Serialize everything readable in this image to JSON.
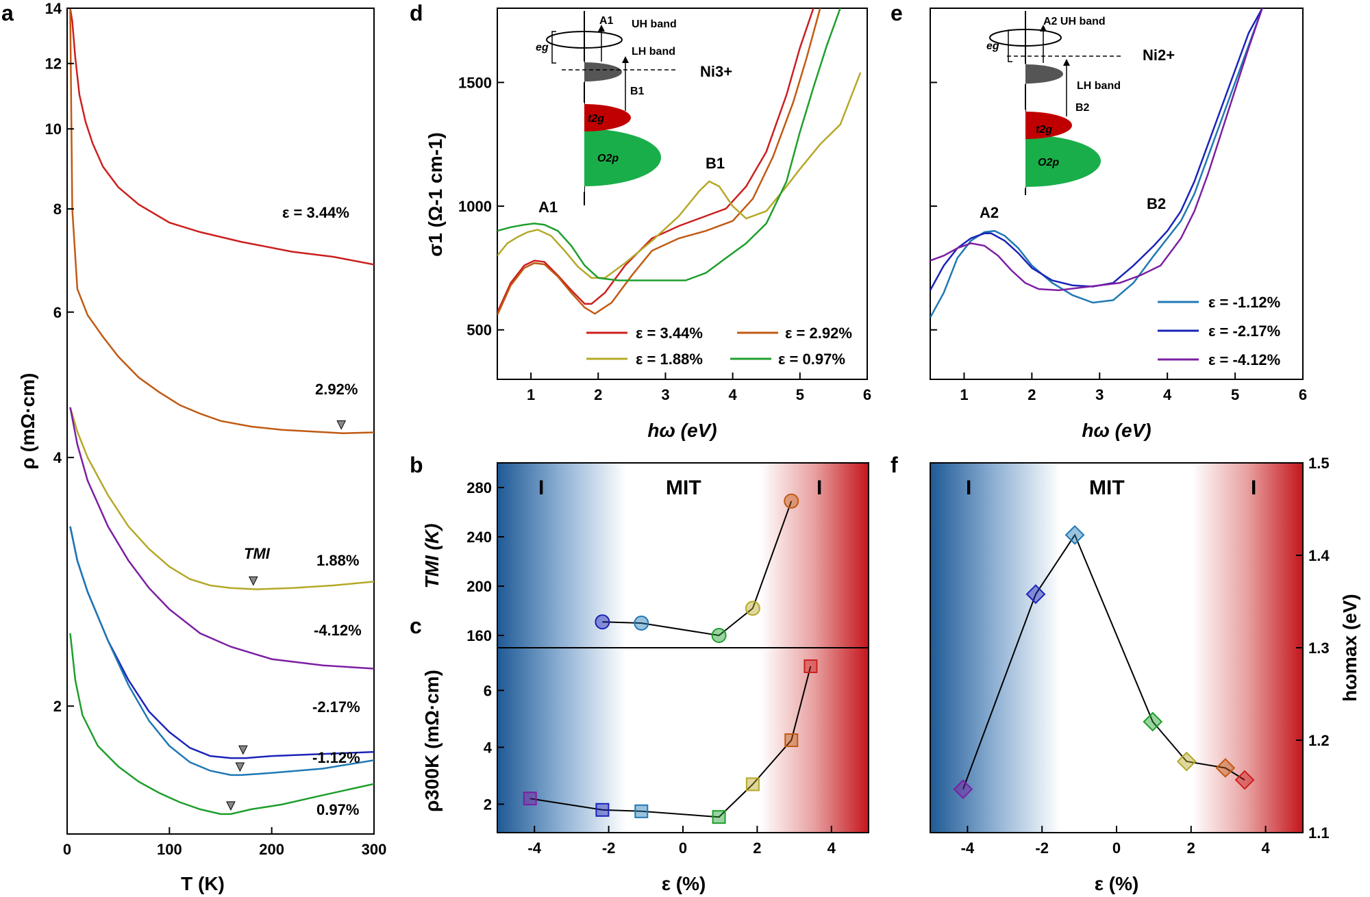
{
  "panel_labels": {
    "a": "a",
    "b": "b",
    "c": "c",
    "d": "d",
    "e": "e",
    "f": "f"
  },
  "axis_labels": {
    "a_y": "ρ (mΩ·cm)",
    "a_x": "T (K)",
    "d_y": "σ1 (Ω-1 cm-1)",
    "d_x": "hω (eV)",
    "e_x": "hω (eV)",
    "b_y": "TMI (K)",
    "c_y": "ρ300K (mΩ·cm)",
    "bc_x": "ε (%)",
    "f_x": "ε (%)",
    "f_y": "hωmax (eV)"
  },
  "regions": {
    "left": "I",
    "middle": "MIT",
    "right": "I"
  },
  "annotations": {
    "a_curves": [
      "ε = 3.44%",
      "2.92%",
      "1.88%",
      "-4.12%",
      "-2.17%",
      "-1.12%",
      "0.97%"
    ],
    "t_mi": "TMI",
    "d_peaks": [
      "A1",
      "B1"
    ],
    "e_peaks": [
      "A2",
      "B2"
    ],
    "d_ion": "Ni3+",
    "e_ion": "Ni2+",
    "inset_d": [
      "A1",
      "UH band",
      "LH band",
      "B1",
      "eg",
      "t2g",
      "O2p"
    ],
    "inset_e": [
      "A2 UH band",
      "LH band",
      "B2",
      "eg",
      "t2g",
      "O2p"
    ]
  },
  "colors": {
    "s344": "#cc1f1f",
    "s292": "#c05a12",
    "s188": "#b5a828",
    "s097": "#1e9e2c",
    "m112": "#1f78b4",
    "m217": "#1a23b8",
    "m412": "#7b1fa2",
    "blue": "#1f5a96",
    "red": "#c4161c",
    "t2g": "#c00000",
    "o2p": "#1aae4a"
  },
  "chart_data": [
    {
      "panel": "a",
      "type": "line",
      "xlabel": "T (K)",
      "ylabel": "ρ (mΩ·cm)",
      "xlim": [
        0,
        300
      ],
      "ylim": [
        1.4,
        14
      ],
      "yscale": "log",
      "xticks": [
        0,
        100,
        200,
        300
      ],
      "yticks": [
        2,
        4,
        6,
        8,
        10,
        12,
        14
      ],
      "series": [
        {
          "name": "ε = 3.44%",
          "color_key": "s344",
          "x": [
            3,
            5,
            8,
            12,
            18,
            25,
            35,
            50,
            70,
            100,
            130,
            170,
            220,
            260,
            300
          ],
          "y": [
            14,
            13.5,
            12.2,
            11.0,
            10.2,
            9.6,
            9.0,
            8.5,
            8.1,
            7.7,
            7.5,
            7.3,
            7.1,
            7.0,
            6.85
          ]
        },
        {
          "name": "2.92%",
          "color_key": "s292",
          "x": [
            3,
            5,
            10,
            20,
            35,
            50,
            70,
            90,
            110,
            130,
            150,
            180,
            210,
            240,
            270,
            300
          ],
          "y": [
            14,
            8.0,
            6.4,
            5.95,
            5.6,
            5.3,
            5.0,
            4.8,
            4.63,
            4.52,
            4.43,
            4.36,
            4.32,
            4.3,
            4.28,
            4.29
          ],
          "tmi": 268
        },
        {
          "name": "1.88%",
          "color_key": "s188",
          "x": [
            3,
            10,
            20,
            40,
            60,
            80,
            100,
            120,
            140,
            160,
            185,
            220,
            260,
            300
          ],
          "y": [
            4.6,
            4.3,
            4.0,
            3.6,
            3.3,
            3.1,
            2.95,
            2.85,
            2.8,
            2.78,
            2.77,
            2.78,
            2.8,
            2.83
          ],
          "tmi": 182
        },
        {
          "name": "-4.12%",
          "color_key": "m412",
          "x": [
            3,
            10,
            20,
            40,
            60,
            80,
            100,
            130,
            160,
            200,
            250,
            300
          ],
          "y": [
            4.6,
            4.15,
            3.75,
            3.3,
            3.0,
            2.78,
            2.62,
            2.45,
            2.36,
            2.28,
            2.24,
            2.22
          ]
        },
        {
          "name": "-2.17%",
          "color_key": "m217",
          "x": [
            3,
            10,
            20,
            40,
            60,
            80,
            100,
            120,
            140,
            160,
            175,
            200,
            250,
            300
          ],
          "y": [
            3.3,
            3.0,
            2.75,
            2.4,
            2.15,
            1.97,
            1.86,
            1.78,
            1.74,
            1.73,
            1.73,
            1.74,
            1.75,
            1.76
          ],
          "tmi": 172
        },
        {
          "name": "-1.12%",
          "color_key": "m112",
          "x": [
            3,
            10,
            20,
            40,
            60,
            80,
            100,
            120,
            140,
            160,
            170,
            200,
            250,
            300
          ],
          "y": [
            3.3,
            3.0,
            2.75,
            2.4,
            2.12,
            1.92,
            1.79,
            1.71,
            1.67,
            1.65,
            1.65,
            1.66,
            1.68,
            1.72
          ],
          "tmi": 169
        },
        {
          "name": "0.97%",
          "color_key": "s097",
          "x": [
            3,
            8,
            15,
            30,
            50,
            70,
            90,
            110,
            130,
            150,
            160,
            180,
            210,
            250,
            300
          ],
          "y": [
            2.45,
            2.15,
            1.95,
            1.79,
            1.69,
            1.62,
            1.57,
            1.53,
            1.5,
            1.48,
            1.48,
            1.5,
            1.52,
            1.56,
            1.61
          ],
          "tmi": 160
        }
      ]
    },
    {
      "panel": "d",
      "type": "line",
      "xlabel": "hω (eV)",
      "ylabel": "σ1 (Ω-1 cm-1)",
      "xlim": [
        0.5,
        6
      ],
      "ylim": [
        300,
        1800
      ],
      "xticks": [
        1,
        2,
        3,
        4,
        5,
        6
      ],
      "yticks": [
        500,
        1000,
        1500
      ],
      "series": [
        {
          "name": "ε = 3.44%",
          "color_key": "s344",
          "x": [
            0.5,
            0.7,
            0.9,
            1.05,
            1.2,
            1.4,
            1.6,
            1.8,
            1.9,
            2.1,
            2.4,
            2.8,
            3.2,
            3.6,
            3.9,
            4.2,
            4.5,
            4.8,
            5.0,
            5.2
          ],
          "y": [
            570,
            690,
            760,
            780,
            775,
            720,
            660,
            605,
            605,
            650,
            760,
            870,
            920,
            960,
            990,
            1080,
            1220,
            1450,
            1640,
            1800
          ]
        },
        {
          "name": "ε = 2.92%",
          "color_key": "s292",
          "x": [
            0.5,
            0.7,
            0.9,
            1.05,
            1.2,
            1.4,
            1.6,
            1.8,
            1.95,
            2.2,
            2.5,
            2.8,
            3.2,
            3.6,
            4.0,
            4.3,
            4.6,
            4.9,
            5.1,
            5.3
          ],
          "y": [
            560,
            680,
            750,
            770,
            765,
            715,
            650,
            590,
            565,
            610,
            720,
            820,
            870,
            900,
            940,
            1030,
            1200,
            1420,
            1600,
            1800
          ]
        },
        {
          "name": "ε = 1.88%",
          "color_key": "s188",
          "x": [
            0.5,
            0.65,
            0.8,
            0.95,
            1.1,
            1.3,
            1.5,
            1.7,
            1.9,
            2.1,
            2.4,
            2.8,
            3.2,
            3.5,
            3.65,
            3.8,
            4.0,
            4.2,
            4.5,
            4.8,
            5.0,
            5.3,
            5.6,
            5.9
          ],
          "y": [
            800,
            850,
            875,
            895,
            905,
            880,
            820,
            755,
            710,
            710,
            770,
            860,
            960,
            1060,
            1100,
            1080,
            1000,
            950,
            980,
            1080,
            1150,
            1250,
            1330,
            1540
          ]
        },
        {
          "name": "ε = 0.97%",
          "color_key": "s097",
          "x": [
            0.5,
            0.7,
            0.9,
            1.05,
            1.2,
            1.4,
            1.6,
            1.8,
            2.0,
            2.3,
            2.6,
            3.0,
            3.3,
            3.6,
            3.9,
            4.2,
            4.5,
            4.8,
            5.0,
            5.2,
            5.4,
            5.6
          ],
          "y": [
            900,
            915,
            925,
            930,
            925,
            900,
            840,
            760,
            710,
            700,
            700,
            700,
            700,
            730,
            790,
            850,
            930,
            1100,
            1300,
            1480,
            1650,
            1800
          ]
        }
      ]
    },
    {
      "panel": "e",
      "type": "line",
      "xlabel": "hω (eV)",
      "xlim": [
        0.5,
        6
      ],
      "ylim": [
        300,
        1800
      ],
      "xticks": [
        1,
        2,
        3,
        4,
        5,
        6
      ],
      "series": [
        {
          "name": "ε = -1.12%",
          "color_key": "m112",
          "x": [
            0.5,
            0.7,
            0.9,
            1.1,
            1.3,
            1.45,
            1.6,
            1.8,
            2.0,
            2.3,
            2.6,
            2.9,
            3.2,
            3.5,
            3.8,
            4.0,
            4.2,
            4.4,
            4.6,
            4.8,
            5.0,
            5.2,
            5.4
          ],
          "y": [
            550,
            650,
            790,
            860,
            895,
            900,
            880,
            830,
            760,
            690,
            640,
            610,
            620,
            690,
            800,
            870,
            940,
            1050,
            1200,
            1350,
            1500,
            1650,
            1800
          ]
        },
        {
          "name": "ε = -2.17%",
          "color_key": "m217",
          "x": [
            0.5,
            0.7,
            0.9,
            1.1,
            1.3,
            1.4,
            1.6,
            1.8,
            2.0,
            2.3,
            2.6,
            2.9,
            3.2,
            3.5,
            3.8,
            4.0,
            4.2,
            4.4,
            4.6,
            4.8,
            5.0,
            5.2,
            5.4
          ],
          "y": [
            660,
            760,
            830,
            870,
            890,
            890,
            860,
            810,
            750,
            700,
            680,
            675,
            690,
            760,
            840,
            900,
            980,
            1100,
            1250,
            1400,
            1550,
            1700,
            1800
          ]
        },
        {
          "name": "ε = -4.12%",
          "color_key": "m412",
          "x": [
            0.5,
            0.7,
            0.9,
            1.1,
            1.3,
            1.5,
            1.7,
            1.9,
            2.1,
            2.4,
            2.7,
            3.0,
            3.3,
            3.6,
            3.9,
            4.2,
            4.4,
            4.6,
            4.8,
            5.0,
            5.2,
            5.4
          ],
          "y": [
            780,
            800,
            830,
            850,
            840,
            800,
            740,
            690,
            665,
            660,
            670,
            680,
            690,
            720,
            760,
            870,
            980,
            1130,
            1300,
            1470,
            1640,
            1800
          ]
        }
      ]
    },
    {
      "panel": "b",
      "type": "scatter",
      "xlabel": "ε (%)",
      "ylabel": "TMI (K)",
      "xlim": [
        -5,
        5
      ],
      "ylim": [
        150,
        300
      ],
      "yticks": [
        160,
        200,
        240,
        280
      ],
      "x": [
        -2.17,
        -1.12,
        0.97,
        1.88,
        2.92
      ],
      "y": [
        171,
        170,
        160,
        182,
        269
      ],
      "color_keys": [
        "m217",
        "m112",
        "s097",
        "s188",
        "s292"
      ]
    },
    {
      "panel": "c",
      "type": "scatter",
      "xlabel": "ε (%)",
      "ylabel": "ρ300K (mΩ·cm)",
      "xlim": [
        -5,
        5
      ],
      "ylim": [
        1,
        7.5
      ],
      "xticks": [
        -4,
        -2,
        0,
        2,
        4
      ],
      "yticks": [
        2,
        4,
        6
      ],
      "x": [
        -4.12,
        -2.17,
        -1.12,
        0.97,
        1.88,
        2.92,
        3.44
      ],
      "y": [
        2.2,
        1.8,
        1.75,
        1.55,
        2.7,
        4.25,
        6.85
      ],
      "color_keys": [
        "m412",
        "m217",
        "m112",
        "s097",
        "s188",
        "s292",
        "s344"
      ]
    },
    {
      "panel": "f",
      "type": "scatter",
      "xlabel": "ε (%)",
      "ylabel": "hωmax (eV)",
      "xlim": [
        -5,
        5
      ],
      "ylim": [
        1.1,
        1.5
      ],
      "xticks": [
        -4,
        -2,
        0,
        2,
        4
      ],
      "yticks": [
        1.1,
        1.2,
        1.3,
        1.4,
        1.5
      ],
      "x": [
        -4.12,
        -2.17,
        -1.12,
        0.97,
        1.88,
        2.92,
        3.44
      ],
      "y": [
        1.147,
        1.358,
        1.422,
        1.22,
        1.177,
        1.17,
        1.157
      ],
      "color_keys": [
        "m412",
        "m217",
        "m112",
        "s097",
        "s188",
        "s292",
        "s344"
      ]
    }
  ]
}
